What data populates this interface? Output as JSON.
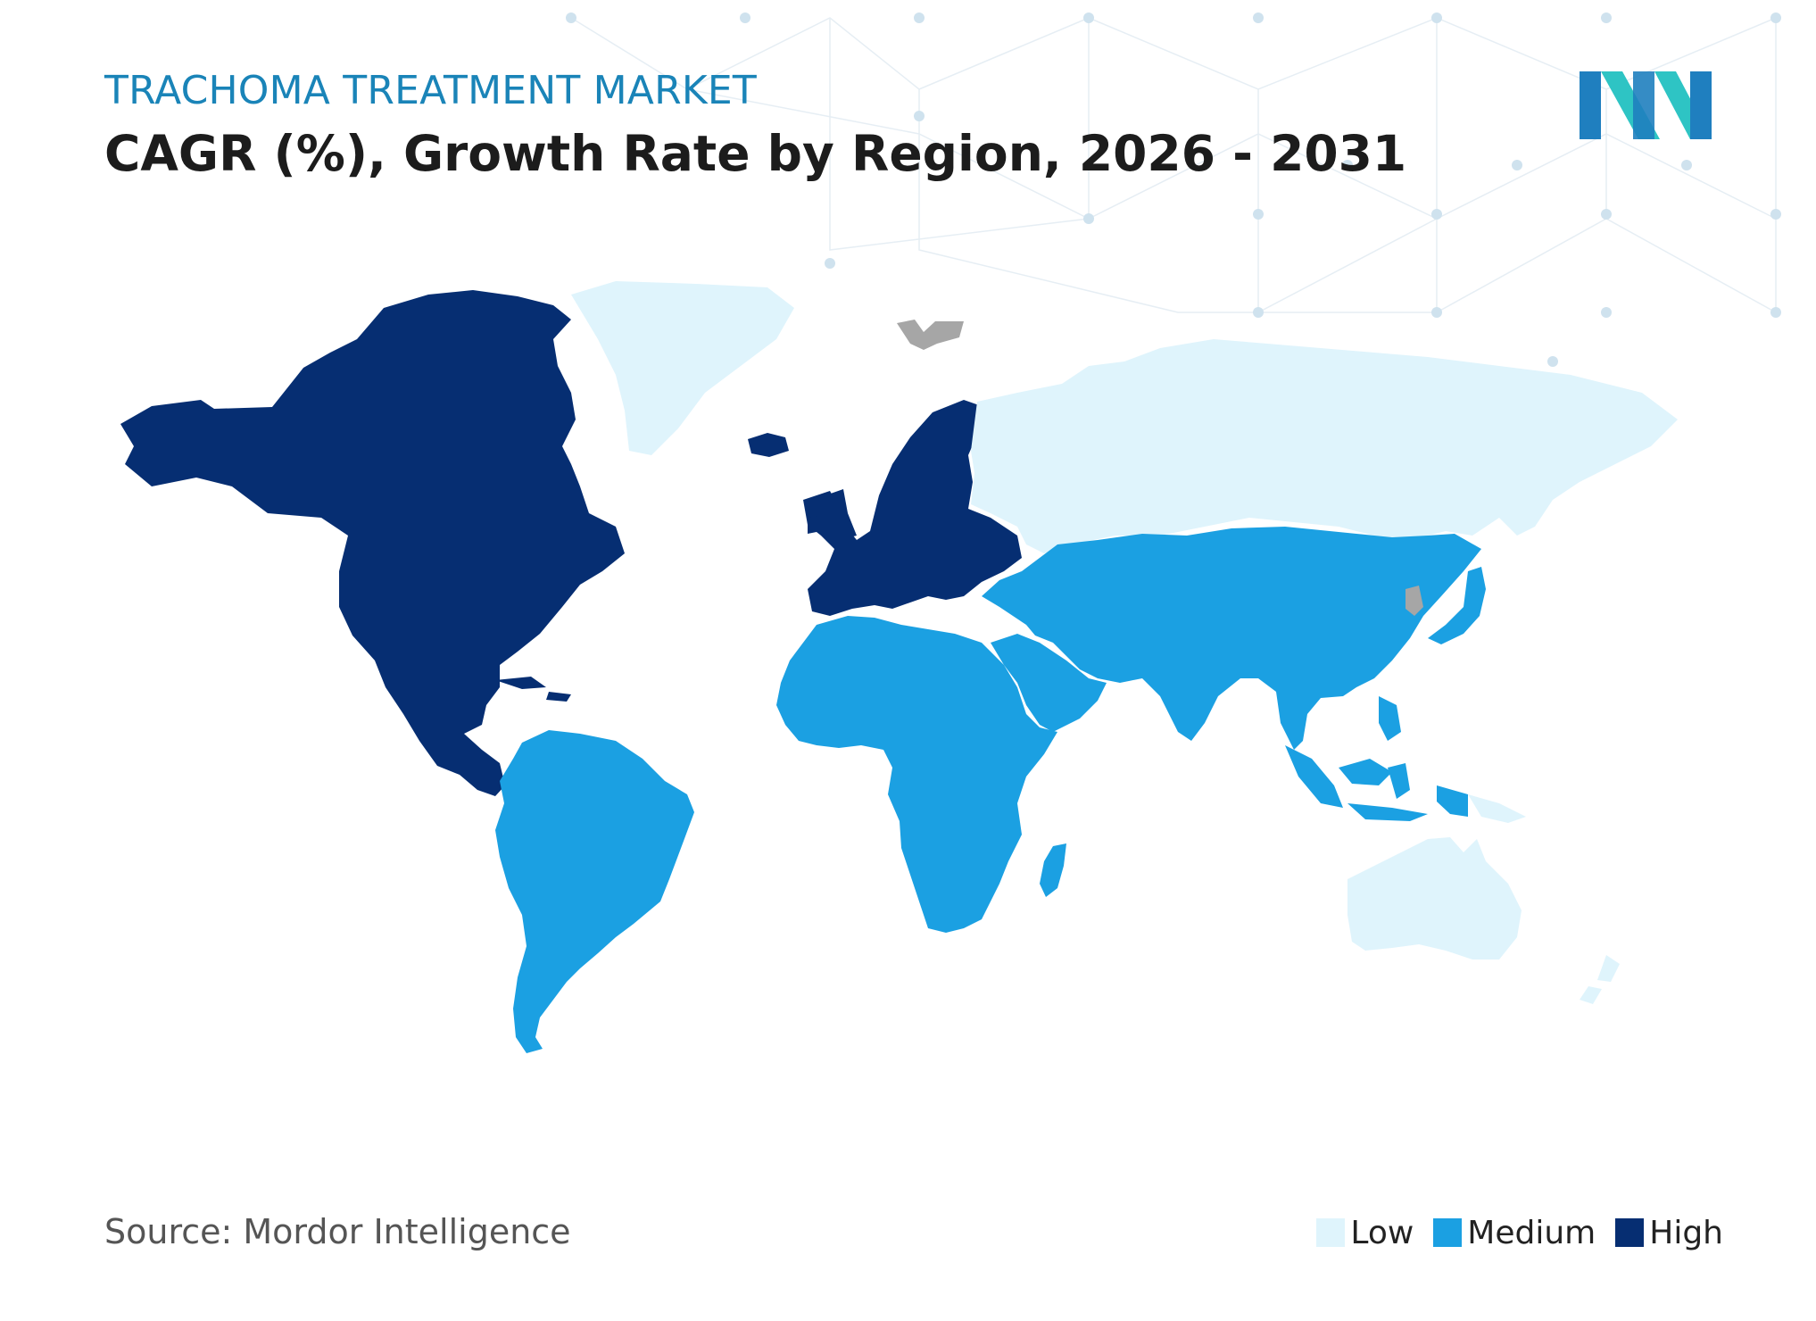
{
  "header": {
    "subtitle": "TRACHOMA TREATMENT MARKET",
    "title": "CAGR (%), Growth Rate by Region, 2026 - 2031"
  },
  "logo": {
    "icon": "mordor-intelligence-logo-icon",
    "colors": [
      "#1f7fbf",
      "#2ec4c4"
    ]
  },
  "footer": {
    "source": "Source: Mordor Intelligence"
  },
  "legend": {
    "items": [
      {
        "label": "Low",
        "color": "#dff4fc"
      },
      {
        "label": "Medium",
        "color": "#1ba0e2"
      },
      {
        "label": "High",
        "color": "#062e72"
      }
    ]
  },
  "map": {
    "regions": [
      {
        "name": "North America",
        "level": "High",
        "color": "#062e72"
      },
      {
        "name": "Europe",
        "level": "High",
        "color": "#062e72"
      },
      {
        "name": "Greenland",
        "level": "Low",
        "color": "#dff4fc"
      },
      {
        "name": "Russia",
        "level": "Low",
        "color": "#dff4fc"
      },
      {
        "name": "South America",
        "level": "Medium",
        "color": "#1ba0e2"
      },
      {
        "name": "Africa",
        "level": "Medium",
        "color": "#1ba0e2"
      },
      {
        "name": "Middle East",
        "level": "Medium",
        "color": "#1ba0e2"
      },
      {
        "name": "Asia",
        "level": "Medium",
        "color": "#1ba0e2"
      },
      {
        "name": "Australia",
        "level": "Low",
        "color": "#dff4fc"
      },
      {
        "name": "New Zealand",
        "level": "Low",
        "color": "#dff4fc"
      }
    ],
    "no_data_color": "#a6a6a6"
  }
}
